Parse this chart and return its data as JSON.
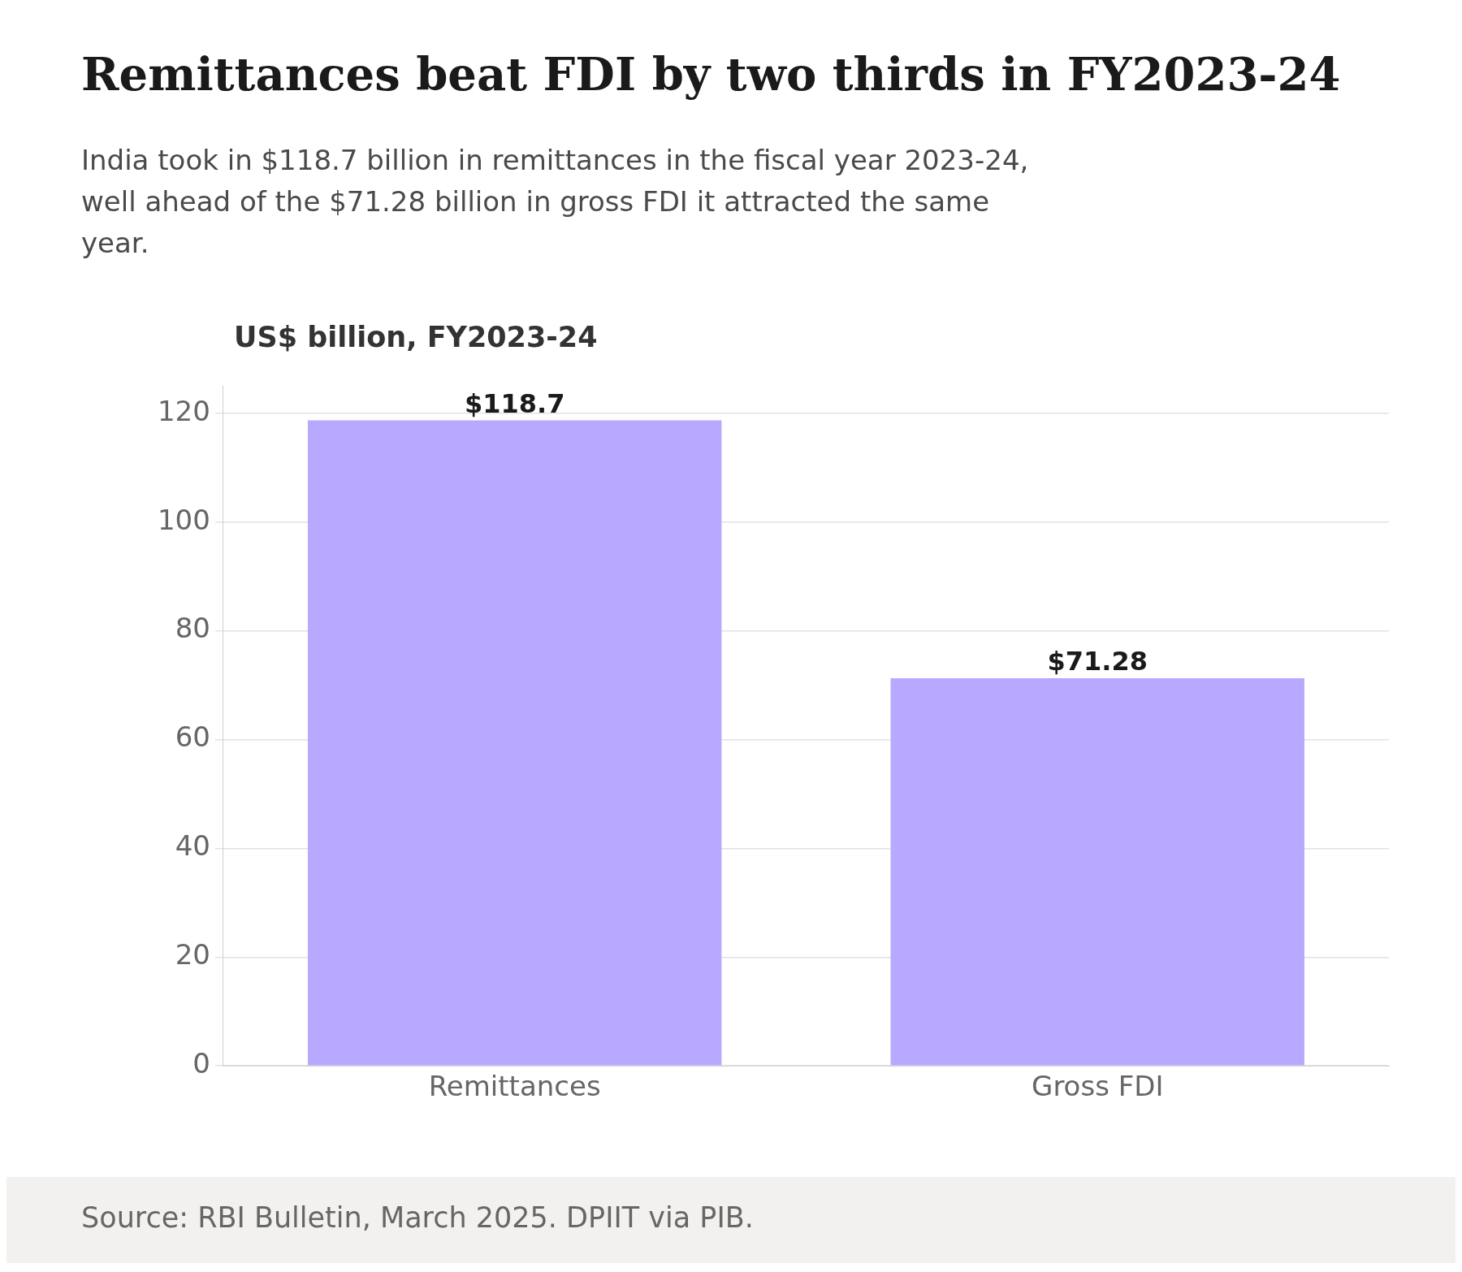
{
  "chart_data": {
    "type": "bar",
    "title": "Remittances beat FDI by two thirds in FY2023-24",
    "subtitle": "India took in $118.7 billion in remittances in the fiscal year 2023-24, well ahead of the $71.28 billion in gross FDI it attracted the same year.",
    "ylabel": "US$ billion, FY2023-24",
    "categories": [
      "Remittances",
      "Gross FDI"
    ],
    "values": [
      118.7,
      71.28
    ],
    "value_labels": [
      "$118.7",
      "$71.28"
    ],
    "color": "#b8a9ff",
    "ylim": [
      0,
      125
    ],
    "yticks": [
      0,
      20,
      40,
      60,
      80,
      100,
      120
    ],
    "grid": "y",
    "legend": false,
    "annotations": [
      "Source: RBI Bulletin, March 2025. DPIIT via PIB."
    ]
  }
}
